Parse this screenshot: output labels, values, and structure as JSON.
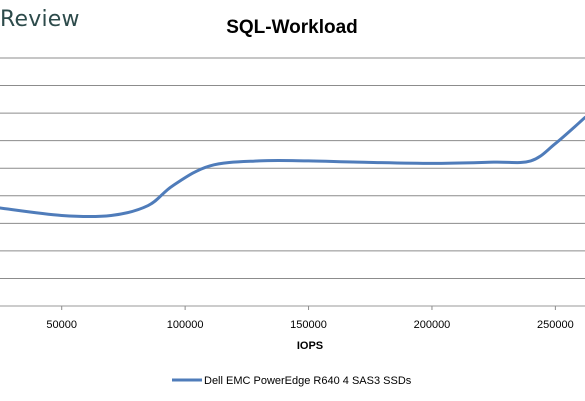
{
  "brand": {
    "text": "Review"
  },
  "chart_data": {
    "type": "line",
    "title": "SQL-Workload",
    "xlabel": "IOPS",
    "ylabel": "",
    "xlim": [
      25000,
      262000
    ],
    "ylim": [
      0,
      10
    ],
    "x_ticks": [
      50000,
      100000,
      150000,
      200000,
      250000
    ],
    "y_gridlines": 10,
    "y_tick_labels_visible": false,
    "grid": true,
    "legend_position": "bottom",
    "series": [
      {
        "name": "Dell EMC PowerEdge R640 4 SAS3 SSDs",
        "color": "#4f7cba",
        "x": [
          25000,
          50000,
          70000,
          85000,
          95000,
          110000,
          130000,
          150000,
          170000,
          200000,
          225000,
          240000,
          250000,
          262000
        ],
        "y": [
          3.95,
          3.65,
          3.65,
          4.05,
          4.85,
          5.65,
          5.85,
          5.85,
          5.8,
          5.75,
          5.8,
          5.85,
          6.55,
          7.6
        ]
      }
    ]
  }
}
